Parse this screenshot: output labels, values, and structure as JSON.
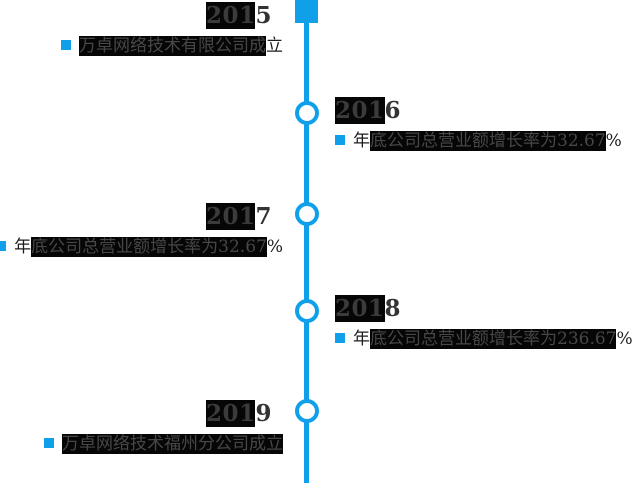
{
  "accent_color": "#10A0E9",
  "highlight_color": "#060606",
  "timeline": {
    "events": [
      {
        "year": "2015",
        "year_pre": "",
        "year_hl": "201",
        "year_post": "5",
        "text": "万卓网络技术有限公司成立",
        "text_pre": "",
        "text_hl": "万卓网络技术有限公司成",
        "text_post": "立",
        "side": "left",
        "marker": "square"
      },
      {
        "year": "2016",
        "year_pre": "",
        "year_hl": "201",
        "year_post": "6",
        "text": "年底公司总营业额增长率为32.67%",
        "text_pre": "年",
        "text_hl": "底公司总营业额增长率为32.67",
        "text_post": "%",
        "side": "right",
        "marker": "circle"
      },
      {
        "year": "2017",
        "year_pre": "",
        "year_hl": "201",
        "year_post": "7",
        "text": "年底公司总营业额增长率为32.67%",
        "text_pre": "年",
        "text_hl": "底公司总营业额增长率为32.67",
        "text_post": "%",
        "side": "left",
        "marker": "circle"
      },
      {
        "year": "2018",
        "year_pre": "",
        "year_hl": "201",
        "year_post": "8",
        "text": "年底公司总营业额增长率为236.67%",
        "text_pre": "年",
        "text_hl": "底公司总营业额增长率为236.67",
        "text_post": "%",
        "side": "right",
        "marker": "circle"
      },
      {
        "year": "2019",
        "year_pre": "",
        "year_hl": "201",
        "year_post": "9",
        "text": "万卓网络技术福州分公司成立",
        "text_pre": "",
        "text_hl": "万卓网络技术福州分公司成立",
        "text_post": "",
        "side": "left",
        "marker": "circle"
      }
    ]
  }
}
